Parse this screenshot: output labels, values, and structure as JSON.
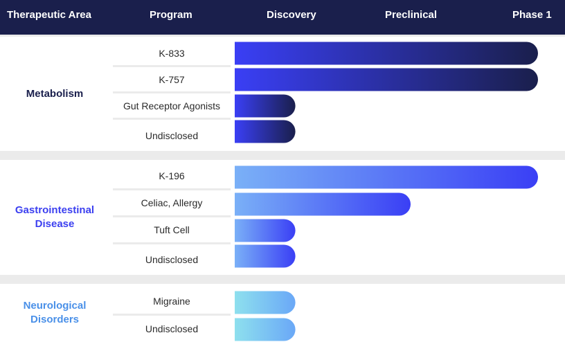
{
  "header": {
    "therapeutic_area": "Therapeutic Area",
    "program": "Program",
    "stages": [
      "Discovery",
      "Preclinical",
      "Phase 1"
    ]
  },
  "groups": [
    {
      "area": "Metabolism",
      "area_color": "#1a1f4c",
      "gradient": [
        "#3a3ff5",
        "#1a1f4c"
      ],
      "programs": [
        "K-833",
        "K-757",
        "Gut Receptor Agonists",
        "Undisclosed"
      ]
    },
    {
      "area": "Gastrointestinal Disease",
      "area_color": "#3b3ff0",
      "gradient": [
        "#7ab0f7",
        "#3a3ff5"
      ],
      "programs": [
        "K-196",
        "Celiac, Allergy",
        "Tuft Cell",
        "Undisclosed"
      ]
    },
    {
      "area": "Neurological Disorders",
      "area_color": "#4a90e8",
      "gradient": [
        "#8ee0ee",
        "#6aa8f7"
      ],
      "programs": [
        "Migraine",
        "Undisclosed"
      ]
    }
  ],
  "chart_data": {
    "type": "bar",
    "orientation": "horizontal",
    "stages": [
      "Discovery",
      "Preclinical",
      "Phase 1"
    ],
    "series": [
      {
        "name": "Metabolism",
        "categories": [
          "K-833",
          "K-757",
          "Gut Receptor Agonists",
          "Undisclosed"
        ],
        "values": [
          1.0,
          1.0,
          0.2,
          0.2
        ]
      },
      {
        "name": "Gastrointestinal Disease",
        "categories": [
          "K-196",
          "Celiac, Allergy",
          "Tuft Cell",
          "Undisclosed"
        ],
        "values": [
          1.0,
          0.58,
          0.2,
          0.2
        ]
      },
      {
        "name": "Neurological Disorders",
        "categories": [
          "Migraine",
          "Undisclosed"
        ],
        "values": [
          0.2,
          0.2
        ]
      }
    ],
    "xlim": [
      0,
      1
    ],
    "value_meaning": "fraction of pipeline from Discovery start to Phase 1"
  }
}
